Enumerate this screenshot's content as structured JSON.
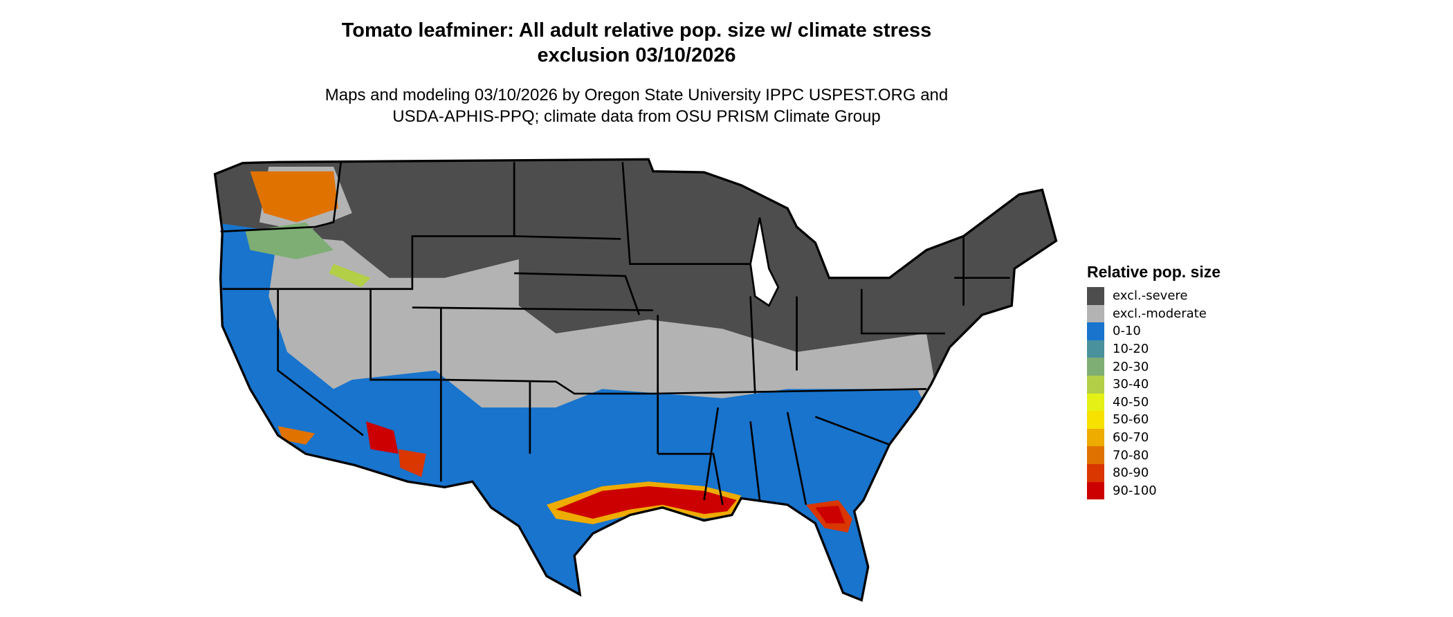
{
  "title": {
    "line1": "Tomato leafminer: All adult relative pop. size w/ climate stress",
    "line2": "exclusion 03/10/2026"
  },
  "subtitle": {
    "line1": "Maps and modeling 03/10/2026 by Oregon State University IPPC USPEST.ORG and",
    "line2": "USDA-APHIS-PPQ; climate data from OSU PRISM Climate Group"
  },
  "legend": {
    "title": "Relative pop. size",
    "items": [
      {
        "label": "excl.-severe",
        "color": "#4d4d4d"
      },
      {
        "label": "excl.-moderate",
        "color": "#b3b3b3"
      },
      {
        "label": "0-10",
        "color": "#1874cd"
      },
      {
        "label": "10-20",
        "color": "#4a919e"
      },
      {
        "label": "20-30",
        "color": "#7eae74"
      },
      {
        "label": "30-40",
        "color": "#b2cf47"
      },
      {
        "label": "40-50",
        "color": "#e5f016"
      },
      {
        "label": "50-60",
        "color": "#f6e100"
      },
      {
        "label": "60-70",
        "color": "#eeab00"
      },
      {
        "label": "70-80",
        "color": "#e07200"
      },
      {
        "label": "80-90",
        "color": "#d93600"
      },
      {
        "label": "90-100",
        "color": "#cc0000"
      }
    ]
  }
}
